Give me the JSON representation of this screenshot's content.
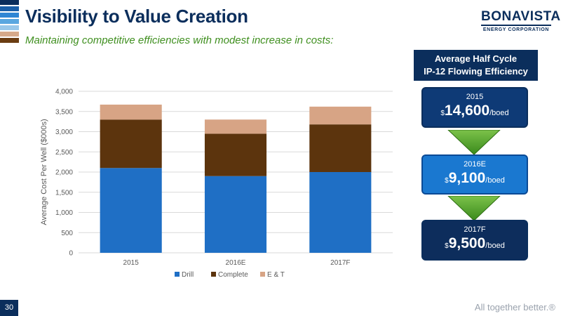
{
  "slide": {
    "title": "Visibility to Value Creation",
    "subtitle": "Maintaining competitive efficiencies with modest increase in costs:",
    "page_number": "30",
    "tagline": "All together better.®"
  },
  "logo": {
    "name": "BONAVISTA",
    "sub": "ENERGY CORPORATION"
  },
  "stripe_colors": [
    "#0b2e5c",
    "#1a5fa8",
    "#2f86d4",
    "#5aa7e0",
    "#9ac8ea",
    "#d6a98a",
    "#6b3d12"
  ],
  "panel": {
    "header_line1": "Average Half Cycle",
    "header_line2": "IP-12 Flowing Efficiency",
    "items": [
      {
        "year": "2015",
        "currency": "$",
        "value": "14,600",
        "unit": "/boed"
      },
      {
        "year": "2016E",
        "currency": "$",
        "value": "9,100",
        "unit": "/boed"
      },
      {
        "year": "2017F",
        "currency": "$",
        "value": "9,500",
        "unit": "/boed"
      }
    ]
  },
  "chart_data": {
    "type": "bar",
    "stacked": true,
    "categories": [
      "2015",
      "2016E",
      "2017F"
    ],
    "series": [
      {
        "name": "Drill",
        "values": [
          2100,
          1900,
          2000
        ],
        "color": "#1f6fc5"
      },
      {
        "name": "Complete",
        "values": [
          1200,
          1050,
          1180
        ],
        "color": "#5c340d"
      },
      {
        "name": "E & T",
        "values": [
          370,
          350,
          440
        ],
        "color": "#d7a485"
      }
    ],
    "ylabel": "Average Cost Per Well ($000s)",
    "xlabel": "",
    "ylim": [
      0,
      4000
    ],
    "yticks": [
      0,
      500,
      1000,
      1500,
      2000,
      2500,
      3000,
      3500,
      4000
    ],
    "ytick_labels": [
      "0",
      "500",
      "1,000",
      "1,500",
      "2,000",
      "2,500",
      "3,000",
      "3,500",
      "4,000"
    ],
    "grid": true,
    "legend": "bottom"
  }
}
